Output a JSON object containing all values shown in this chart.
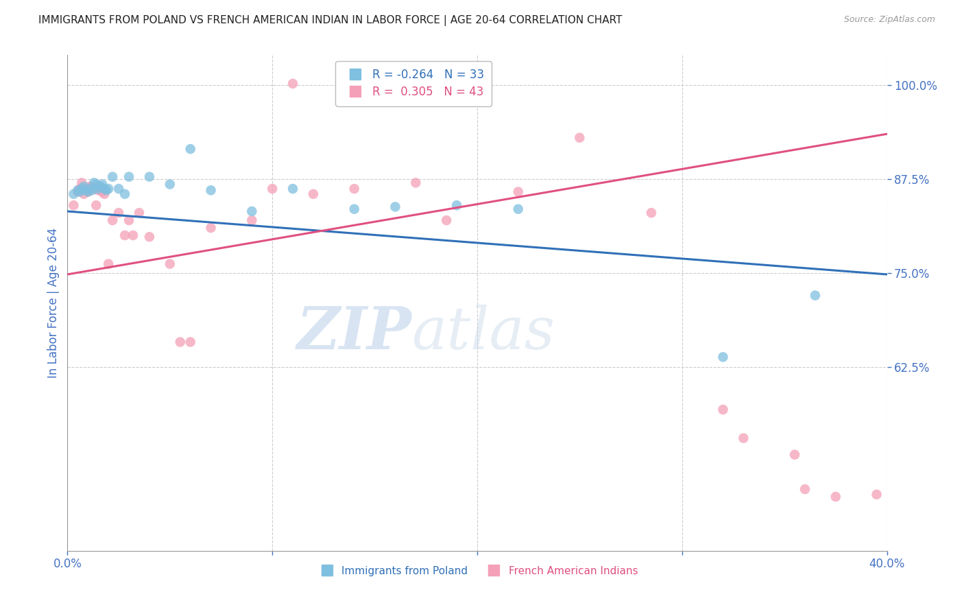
{
  "title": "IMMIGRANTS FROM POLAND VS FRENCH AMERICAN INDIAN IN LABOR FORCE | AGE 20-64 CORRELATION CHART",
  "source": "Source: ZipAtlas.com",
  "xlabel": "",
  "ylabel": "In Labor Force | Age 20-64",
  "blue_label": "Immigrants from Poland",
  "pink_label": "French American Indians",
  "blue_R": -0.264,
  "blue_N": 33,
  "pink_R": 0.305,
  "pink_N": 43,
  "xlim": [
    0.0,
    0.4
  ],
  "ylim": [
    0.38,
    1.04
  ],
  "yticks": [
    0.625,
    0.75,
    0.875,
    1.0
  ],
  "xticks": [
    0.0,
    0.1,
    0.2,
    0.3,
    0.4
  ],
  "xtick_labels": [
    "0.0%",
    "",
    "",
    "",
    "40.0%"
  ],
  "blue_color": "#7fbfdf",
  "pink_color": "#f4a0b8",
  "blue_line_color": "#3070b8",
  "pink_line_color": "#e05080",
  "watermark_zip": "ZIP",
  "watermark_atlas": "atlas",
  "background_color": "#ffffff",
  "grid_color": "#cccccc",
  "title_color": "#222222",
  "axis_label_color": "#4472c4",
  "tick_label_color": "#4472c4",
  "blue_scatter_x": [
    0.003,
    0.005,
    0.006,
    0.007,
    0.008,
    0.009,
    0.01,
    0.011,
    0.012,
    0.013,
    0.014,
    0.015,
    0.016,
    0.017,
    0.018,
    0.019,
    0.02,
    0.022,
    0.025,
    0.028,
    0.03,
    0.04,
    0.05,
    0.06,
    0.07,
    0.09,
    0.11,
    0.14,
    0.16,
    0.19,
    0.22,
    0.32,
    0.365
  ],
  "blue_scatter_y": [
    0.855,
    0.86,
    0.858,
    0.862,
    0.865,
    0.86,
    0.858,
    0.862,
    0.86,
    0.87,
    0.868,
    0.862,
    0.865,
    0.868,
    0.862,
    0.86,
    0.862,
    0.878,
    0.862,
    0.855,
    0.878,
    0.878,
    0.868,
    0.915,
    0.86,
    0.832,
    0.862,
    0.835,
    0.838,
    0.84,
    0.835,
    0.638,
    0.72
  ],
  "pink_scatter_x": [
    0.003,
    0.005,
    0.006,
    0.007,
    0.008,
    0.009,
    0.01,
    0.011,
    0.012,
    0.013,
    0.014,
    0.015,
    0.016,
    0.017,
    0.018,
    0.02,
    0.022,
    0.025,
    0.028,
    0.03,
    0.032,
    0.035,
    0.04,
    0.05,
    0.055,
    0.06,
    0.07,
    0.09,
    0.1,
    0.11,
    0.12,
    0.14,
    0.17,
    0.185,
    0.22,
    0.25,
    0.285,
    0.32,
    0.33,
    0.355,
    0.36,
    0.375,
    0.395
  ],
  "pink_scatter_y": [
    0.84,
    0.858,
    0.862,
    0.87,
    0.855,
    0.862,
    0.858,
    0.865,
    0.865,
    0.862,
    0.84,
    0.86,
    0.865,
    0.858,
    0.855,
    0.762,
    0.82,
    0.83,
    0.8,
    0.82,
    0.8,
    0.83,
    0.798,
    0.762,
    0.658,
    0.658,
    0.81,
    0.82,
    0.862,
    1.002,
    0.855,
    0.862,
    0.87,
    0.82,
    0.858,
    0.93,
    0.83,
    0.568,
    0.53,
    0.508,
    0.462,
    0.452,
    0.455
  ]
}
